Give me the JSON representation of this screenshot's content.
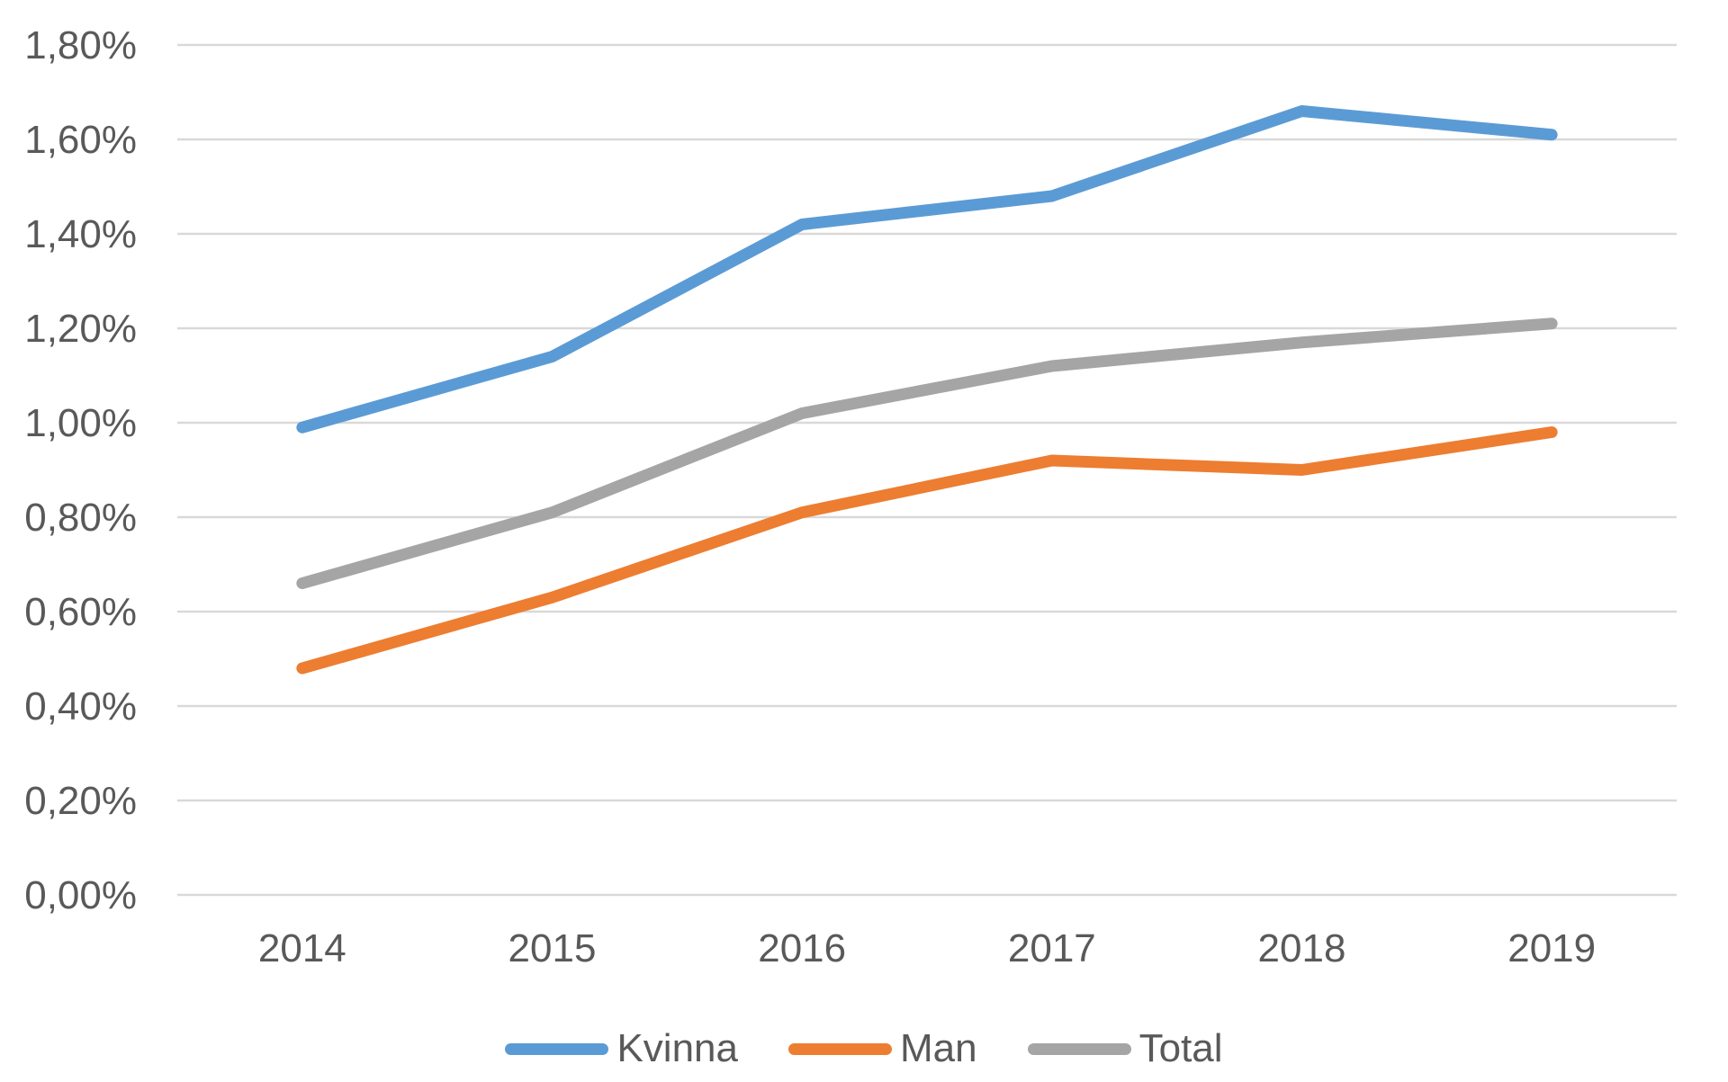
{
  "chart_data": {
    "type": "line",
    "title": "",
    "xlabel": "",
    "ylabel": "",
    "categories": [
      "2014",
      "2015",
      "2016",
      "2017",
      "2018",
      "2019"
    ],
    "series": [
      {
        "name": "Kvinna",
        "color": "#5B9BD5",
        "values": [
          0.99,
          1.14,
          1.42,
          1.48,
          1.66,
          1.61
        ]
      },
      {
        "name": "Man",
        "color": "#ED7D31",
        "values": [
          0.48,
          0.63,
          0.81,
          0.92,
          0.9,
          0.98
        ]
      },
      {
        "name": "Total",
        "color": "#A5A5A5",
        "values": [
          0.66,
          0.81,
          1.02,
          1.12,
          1.17,
          1.21
        ]
      }
    ],
    "ylim": [
      0,
      1.8
    ],
    "ytick_step": 0.2,
    "ytick_labels": [
      "0,00%",
      "0,20%",
      "0,40%",
      "0,60%",
      "0,80%",
      "1,00%",
      "1,20%",
      "1,40%",
      "1,60%",
      "1,80%"
    ],
    "grid": true,
    "legend_position": "bottom",
    "value_format": "percent-comma-decimal"
  },
  "colors": {
    "grid": "#D9D9D9",
    "text": "#595959",
    "background": "#FFFFFF"
  }
}
